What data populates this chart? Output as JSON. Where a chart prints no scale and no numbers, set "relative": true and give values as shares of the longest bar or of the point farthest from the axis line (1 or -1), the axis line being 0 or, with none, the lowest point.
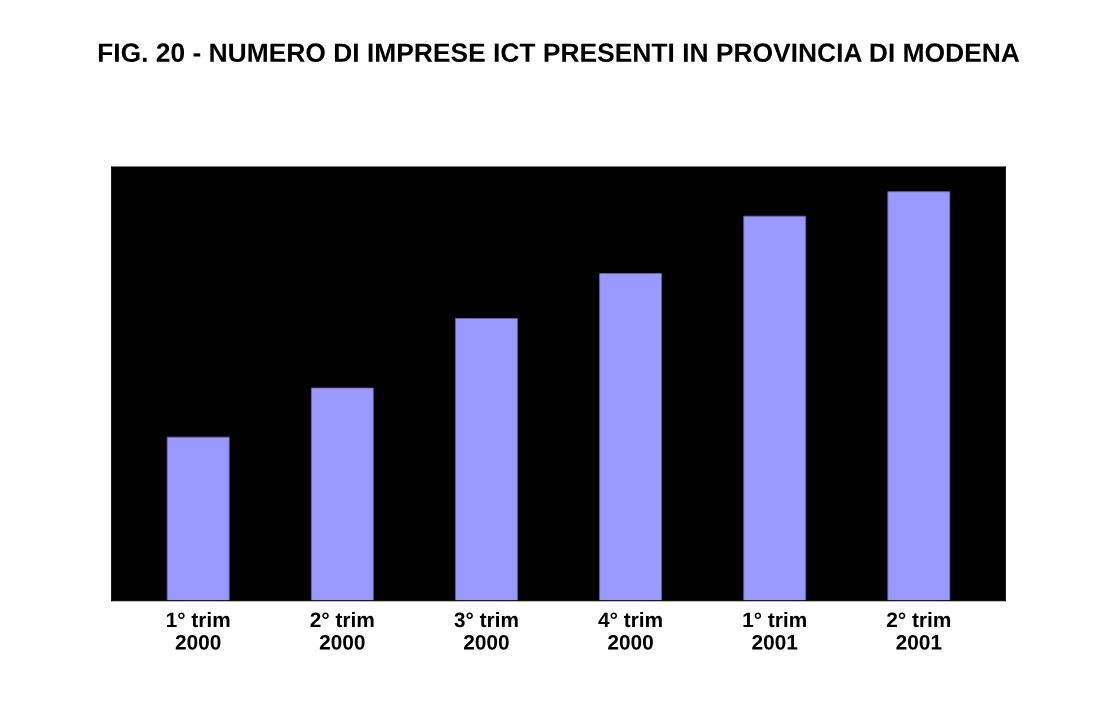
{
  "chart_data": {
    "type": "bar",
    "title": "FIG. 20 - NUMERO DI IMPRESE ICT PRESENTI IN PROVINCIA DI MODENA",
    "categories": [
      "1° trim\n2000",
      "2° trim\n2000",
      "3° trim\n2000",
      "4° trim\n2000",
      "1° trim\n2001",
      "2° trim\n2001"
    ],
    "values": [
      0.4,
      0.52,
      0.69,
      0.8,
      0.94,
      1.0
    ],
    "color": "#9999ff",
    "relative": true
  }
}
